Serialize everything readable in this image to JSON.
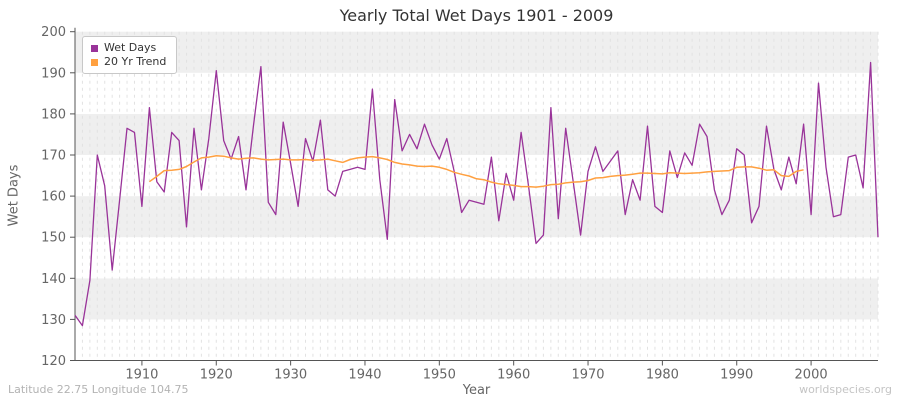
{
  "page": {
    "footer_left": "Latitude 22.75 Longitude 104.75",
    "footer_right": "worldspecies.org"
  },
  "chart_data": {
    "type": "line",
    "title": "Yearly Total Wet Days 1901 - 2009",
    "xlabel": "Year",
    "ylabel": "Wet Days",
    "xlim": [
      1901,
      2009
    ],
    "ylim": [
      120,
      200
    ],
    "x_ticks": [
      1910,
      1920,
      1930,
      1940,
      1950,
      1960,
      1970,
      1980,
      1990,
      2000
    ],
    "y_ticks": [
      120,
      130,
      140,
      150,
      160,
      170,
      180,
      190,
      200
    ],
    "grid": "yearly vertical dashed lines; alternating gray horizontal bands every 10 units",
    "legend_position": "top-left",
    "band_color": "#efefef",
    "series": [
      {
        "name": "Wet Days",
        "color": "#993399",
        "x_start": 1901,
        "x_step": 1,
        "values": [
          131,
          128.5,
          139.5,
          170,
          162.5,
          142,
          159,
          176.5,
          175.5,
          157.5,
          181.5,
          163.5,
          161,
          175.5,
          173.5,
          152.5,
          176.5,
          161.5,
          174,
          190.5,
          173.5,
          169,
          174.5,
          161.5,
          177,
          191.5,
          158.5,
          155.5,
          178,
          168,
          157.5,
          174,
          168.5,
          178.5,
          161.5,
          160,
          166,
          166.5,
          167,
          166.5,
          186,
          164,
          149.5,
          183.5,
          171,
          175,
          171.5,
          177.5,
          172.5,
          169,
          174,
          166,
          156,
          159,
          158.5,
          158,
          169.5,
          154,
          165.5,
          159,
          175.5,
          162.5,
          148.5,
          150.5,
          181.5,
          154.5,
          176.5,
          163.5,
          150.5,
          166,
          172,
          166,
          168.5,
          171,
          155.5,
          164,
          159,
          177,
          157.5,
          156,
          171,
          164.5,
          170.5,
          167.5,
          177.5,
          174.5,
          161.5,
          155.5,
          159,
          171.5,
          170,
          153.5,
          157.5,
          177,
          166.5,
          161.5,
          169.5,
          163,
          177.5,
          155.5,
          187.5,
          167,
          155,
          155.5,
          169.5,
          170,
          162,
          192.5,
          150
        ]
      },
      {
        "name": "20 Yr Trend",
        "color": "#ffa040",
        "x_start": 1911,
        "x_step": 1,
        "values": [
          163.5,
          164.8,
          166.2,
          166.3,
          166.5,
          167.2,
          168.3,
          169.3,
          169.5,
          169.8,
          169.7,
          169.3,
          169.0,
          169.2,
          169.3,
          169.0,
          168.8,
          168.9,
          169.0,
          168.8,
          168.8,
          168.9,
          168.7,
          168.8,
          169.0,
          168.6,
          168.2,
          168.9,
          169.3,
          169.5,
          169.6,
          169.3,
          168.9,
          168.2,
          167.8,
          167.6,
          167.3,
          167.2,
          167.3,
          167.0,
          166.5,
          165.8,
          165.3,
          164.9,
          164.2,
          164.0,
          163.4,
          163.0,
          162.8,
          162.6,
          162.3,
          162.3,
          162.2,
          162.4,
          162.8,
          162.9,
          163.2,
          163.4,
          163.5,
          163.8,
          164.4,
          164.5,
          164.8,
          165.0,
          165.1,
          165.3,
          165.6,
          165.6,
          165.5,
          165.4,
          165.7,
          165.6,
          165.5,
          165.6,
          165.7,
          165.9,
          166.0,
          166.1,
          166.2,
          167.0,
          167.1,
          167.1,
          166.8,
          166.3,
          166.4,
          165.0,
          164.8,
          166.0,
          166.4
        ]
      }
    ]
  }
}
